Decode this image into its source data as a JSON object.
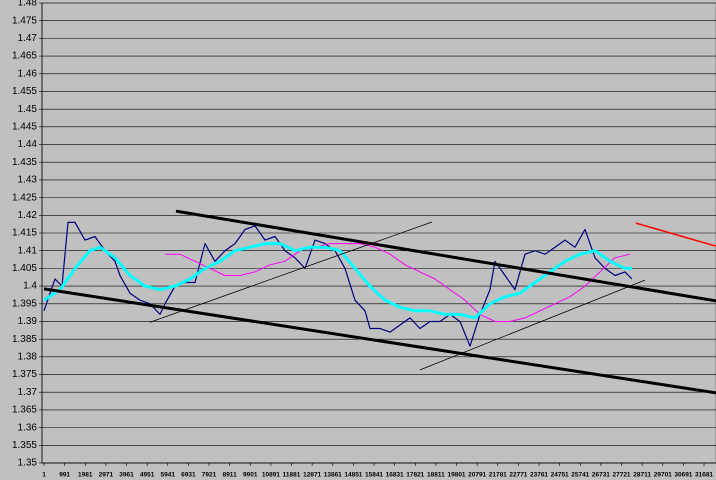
{
  "chart_data": {
    "type": "line",
    "xlim": [
      0,
      32256
    ],
    "ylim": [
      1.35,
      1.48
    ],
    "xticks": [
      1,
      991,
      1981,
      2971,
      3961,
      4951,
      5941,
      6931,
      7921,
      8911,
      9901,
      10891,
      11881,
      12871,
      13861,
      14851,
      15841,
      16831,
      17821,
      18811,
      19801,
      20791,
      21781,
      22771,
      23761,
      24751,
      25741,
      26731,
      27721,
      28711,
      29701,
      30691,
      31681
    ],
    "yticks": [
      1.35,
      1.355,
      1.36,
      1.365,
      1.37,
      1.375,
      1.38,
      1.385,
      1.39,
      1.395,
      1.4,
      1.405,
      1.41,
      1.415,
      1.42,
      1.425,
      1.43,
      1.435,
      1.44,
      1.445,
      1.45,
      1.455,
      1.46,
      1.465,
      1.47,
      1.475,
      1.48
    ],
    "grid": true,
    "series": [
      {
        "color": "#000080",
        "line_width": 1.2,
        "x": [
          0,
          288,
          528,
          864,
          1152,
          1488,
          1968,
          2448,
          2928,
          3408,
          3648,
          4128,
          4608,
          5088,
          5568,
          5808,
          6288,
          6768,
          7248,
          7728,
          8208,
          8688,
          9168,
          9648,
          10128,
          10608,
          11088,
          11568,
          12048,
          12528,
          13008,
          13488,
          13968,
          14448,
          14928,
          15408,
          15648,
          16128,
          16608,
          17088,
          17568,
          18048,
          18528,
          19008,
          19488,
          19968,
          20448,
          20928,
          21408,
          21648,
          22128,
          22608,
          23088,
          23568,
          24048,
          24528,
          25008,
          25488,
          25968,
          26448,
          26928,
          27408,
          27888,
          28224
        ],
        "values": [
          1.393,
          1.398,
          1.402,
          1.4,
          1.418,
          1.418,
          1.413,
          1.414,
          1.41,
          1.407,
          1.403,
          1.398,
          1.396,
          1.395,
          1.392,
          1.395,
          1.4,
          1.401,
          1.401,
          1.412,
          1.407,
          1.41,
          1.412,
          1.416,
          1.417,
          1.413,
          1.414,
          1.41,
          1.408,
          1.405,
          1.413,
          1.412,
          1.41,
          1.405,
          1.396,
          1.393,
          1.388,
          1.388,
          1.387,
          1.389,
          1.391,
          1.388,
          1.39,
          1.39,
          1.392,
          1.39,
          1.383,
          1.392,
          1.399,
          1.407,
          1.403,
          1.399,
          1.409,
          1.41,
          1.409,
          1.411,
          1.413,
          1.411,
          1.416,
          1.408,
          1.405,
          1.403,
          1.404,
          1.402
        ]
      },
      {
        "color": "#ff00ff",
        "line_width": 1,
        "x": [
          5808,
          6528,
          7248,
          7968,
          8688,
          9408,
          10128,
          10848,
          11568,
          12288,
          13008,
          13728,
          14448,
          15168,
          15888,
          16608,
          17328,
          18048,
          18768,
          19488,
          20208,
          20928,
          21648,
          22368,
          23088,
          23808,
          24528,
          25248,
          25968,
          26688,
          27408,
          28128
        ],
        "values": [
          1.409,
          1.409,
          1.407,
          1.405,
          1.403,
          1.403,
          1.404,
          1.406,
          1.407,
          1.41,
          1.411,
          1.412,
          1.412,
          1.412,
          1.411,
          1.409,
          1.406,
          1.404,
          1.402,
          1.399,
          1.396,
          1.392,
          1.39,
          1.39,
          1.391,
          1.393,
          1.395,
          1.397,
          1.4,
          1.404,
          1.408,
          1.409
        ]
      },
      {
        "color": "#00ffff",
        "line_width": 3,
        "x": [
          0,
          768,
          1488,
          2208,
          2688,
          3408,
          4128,
          4848,
          5568,
          6288,
          7008,
          7728,
          8448,
          9168,
          9888,
          10608,
          11328,
          12048,
          12768,
          13488,
          14208,
          14928,
          15648,
          16368,
          17088,
          17808,
          18528,
          19248,
          19968,
          20688,
          21408,
          22128,
          22848,
          23568,
          24288,
          25008,
          25728,
          26448,
          27168,
          27888,
          28224
        ],
        "values": [
          1.396,
          1.399,
          1.405,
          1.41,
          1.411,
          1.408,
          1.403,
          1.4,
          1.399,
          1.4,
          1.402,
          1.405,
          1.407,
          1.41,
          1.411,
          1.412,
          1.412,
          1.41,
          1.411,
          1.411,
          1.41,
          1.405,
          1.4,
          1.396,
          1.394,
          1.393,
          1.393,
          1.392,
          1.392,
          1.391,
          1.395,
          1.397,
          1.398,
          1.401,
          1.404,
          1.407,
          1.409,
          1.41,
          1.407,
          1.405,
          1.405
        ]
      },
      {
        "color": "#000000",
        "line_width": 3,
        "x": [
          6336,
          32256
        ],
        "values": [
          1.4212,
          1.3958
        ]
      },
      {
        "color": "#000000",
        "line_width": 3,
        "x": [
          0,
          32256
        ],
        "values": [
          1.3992,
          1.3698
        ]
      },
      {
        "color": "#000000",
        "line_width": 0.8,
        "x": [
          5088,
          18624
        ],
        "values": [
          1.3898,
          1.4181
        ]
      },
      {
        "color": "#000000",
        "line_width": 0.8,
        "x": [
          18048,
          28848
        ],
        "values": [
          1.3763,
          1.4017
        ]
      },
      {
        "color": "#ff0000",
        "line_width": 1.5,
        "x": [
          28416,
          32256
        ],
        "values": [
          1.4178,
          1.4113
        ]
      }
    ]
  }
}
